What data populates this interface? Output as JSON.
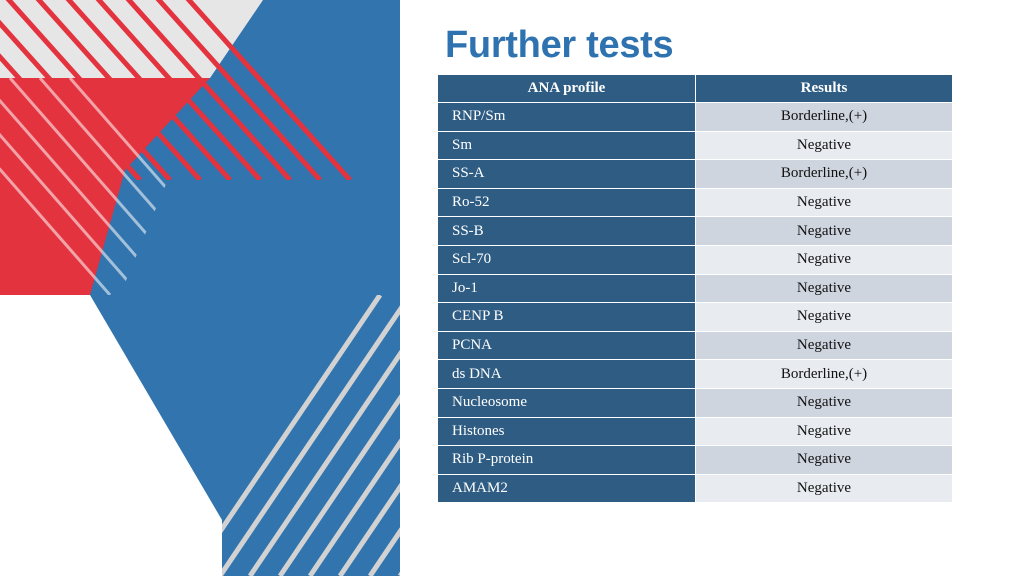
{
  "slide": {
    "title": "Further tests"
  },
  "table": {
    "headers": [
      "ANA profile",
      "Results"
    ],
    "rows": [
      {
        "profile": "RNP/Sm",
        "result": "Borderline,(+)"
      },
      {
        "profile": "Sm",
        "result": "Negative"
      },
      {
        "profile": "SS-A",
        "result": "Borderline,(+)"
      },
      {
        "profile": "Ro-52",
        "result": "Negative"
      },
      {
        "profile": "SS-B",
        "result": "Negative"
      },
      {
        "profile": "Scl-70",
        "result": "Negative"
      },
      {
        "profile": "Jo-1",
        "result": "Negative"
      },
      {
        "profile": "CENP B",
        "result": "Negative"
      },
      {
        "profile": "PCNA",
        "result": "Negative"
      },
      {
        "profile": "ds DNA",
        "result": "Borderline,(+)"
      },
      {
        "profile": "Nucleosome",
        "result": "Negative"
      },
      {
        "profile": "Histones",
        "result": "Negative"
      },
      {
        "profile": "Rib P-protein",
        "result": "Negative"
      },
      {
        "profile": "AMAM2",
        "result": "Negative"
      }
    ]
  },
  "colors": {
    "title": "#2f72b0",
    "header_bg": "#2e5c83",
    "deco_blue": "#3274ad",
    "deco_red": "#e2333f",
    "deco_grey": "#d2d2d2"
  }
}
